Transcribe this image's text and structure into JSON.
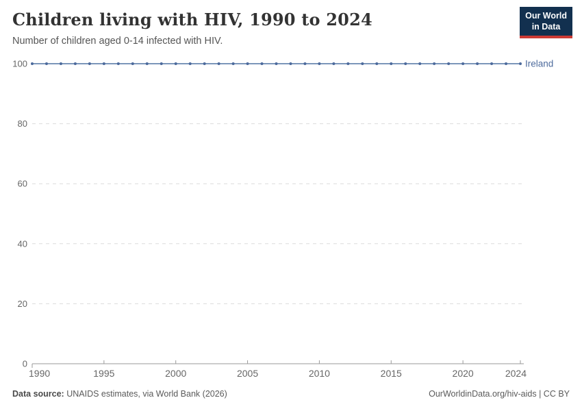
{
  "header": {
    "title": "Children living with HIV, 1990 to 2024",
    "subtitle": "Number of children aged 0-14 infected with HIV.",
    "logo": {
      "line1": "Our World",
      "line2": "in Data"
    }
  },
  "footer": {
    "source_label": "Data source:",
    "source_text": " UNAIDS estimates, via World Bank (2026)",
    "right_text": "OurWorldinData.org/hiv-aids | CC BY"
  },
  "colors": {
    "title": "#333333",
    "subtitle": "#555555",
    "line": "#7b96ba",
    "marker": "#4c6a9c",
    "entity_label": "#4c6a9c",
    "grid": "#dcdcdc",
    "axis": "#999999",
    "tick_text": "#666666",
    "logo_bg": "#12304f",
    "logo_red": "#cc3a34"
  },
  "chart_data": {
    "type": "line",
    "title": "Children living with HIV, 1990 to 2024",
    "subtitle": "Number of children aged 0-14 infected with HIV.",
    "xlabel": "",
    "ylabel": "",
    "x": [
      1990,
      1991,
      1992,
      1993,
      1994,
      1995,
      1996,
      1997,
      1998,
      1999,
      2000,
      2001,
      2002,
      2003,
      2004,
      2005,
      2006,
      2007,
      2008,
      2009,
      2010,
      2011,
      2012,
      2013,
      2014,
      2015,
      2016,
      2017,
      2018,
      2019,
      2020,
      2021,
      2022,
      2023,
      2024
    ],
    "series": [
      {
        "name": "Ireland",
        "values": [
          100,
          100,
          100,
          100,
          100,
          100,
          100,
          100,
          100,
          100,
          100,
          100,
          100,
          100,
          100,
          100,
          100,
          100,
          100,
          100,
          100,
          100,
          100,
          100,
          100,
          100,
          100,
          100,
          100,
          100,
          100,
          100,
          100,
          100,
          100
        ]
      }
    ],
    "ylim": [
      0,
      100
    ],
    "yticks": [
      0,
      20,
      40,
      60,
      80,
      100
    ],
    "xticks": [
      1990,
      1995,
      2000,
      2005,
      2010,
      2015,
      2020,
      2024
    ],
    "grid": true,
    "grid_style": "dashed",
    "legend_position": "end-of-line-label",
    "markers": true
  }
}
